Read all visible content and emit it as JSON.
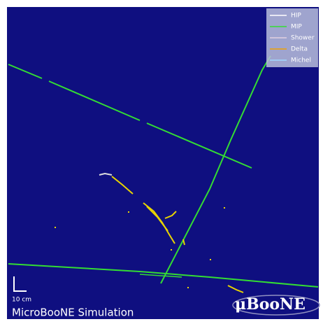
{
  "legend": {
    "items": [
      "HIP",
      "MIP",
      "Shower",
      "Delta",
      "Michel"
    ]
  },
  "scale_bar": {
    "label": "10 cm"
  },
  "caption": "MicroBooNE Simulation",
  "logo": "μBooNE"
}
